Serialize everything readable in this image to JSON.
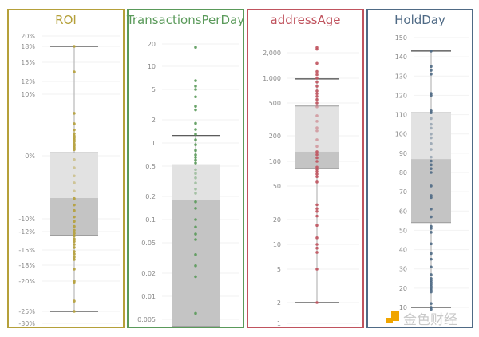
{
  "chart_data": [
    {
      "type": "box",
      "title": "ROI",
      "color": "#b5a03a",
      "scale": "nonlinear",
      "ticks": [
        "20%",
        "18%",
        "15%",
        "12%",
        "10%",
        "0%",
        "-10%",
        "-12%",
        "-15%",
        "-18%",
        "-20%",
        "-25%",
        "-30%"
      ],
      "tick_values": [
        20,
        18,
        15,
        12,
        10,
        0,
        -10,
        -12,
        -15,
        -18,
        -20,
        -25,
        -30
      ],
      "box": {
        "whisker_high": 18,
        "q3": 0.5,
        "median": -6.7,
        "q1": -12.6,
        "whisker_low": -25
      },
      "points": [
        18,
        13.5,
        6.9,
        5.2,
        4.2,
        3.6,
        3.2,
        2.9,
        2.6,
        2.3,
        1.9,
        1.6,
        1.3,
        1.0,
        -0.6,
        -1.9,
        -3.2,
        -4.3,
        -5.6,
        -6.8,
        -7.8,
        -8.7,
        -9.7,
        -10.4,
        -11.2,
        -11.8,
        -12.3,
        -12.7,
        -13.2,
        -13.6,
        -14.1,
        -14.6,
        -15.3,
        -15.8,
        -16.4,
        -16.9,
        -18.5,
        -20,
        -20.3,
        -23.3,
        -25
      ]
    },
    {
      "type": "box",
      "title": "TransactionsPerDay",
      "color": "#5a9a5a",
      "scale": "log",
      "ticks": [
        "20",
        "10",
        "5",
        "2",
        "1",
        "0.5",
        "0.2",
        "0.1",
        "0.05",
        "0.02",
        "0.01",
        "0.005"
      ],
      "tick_values": [
        20,
        10,
        5,
        2,
        1,
        0.5,
        0.2,
        0.1,
        0.05,
        0.02,
        0.01,
        0.005
      ],
      "box": {
        "whisker_high": 1.25,
        "q3": 0.52,
        "median": 0.18,
        "q1": 0.004,
        "whisker_low": 0.004
      },
      "points": [
        18,
        6.5,
        5.5,
        5,
        4,
        3,
        2.7,
        1.8,
        1.5,
        1.3,
        1.1,
        0.95,
        0.8,
        0.7,
        0.65,
        0.6,
        0.55,
        0.45,
        0.4,
        0.35,
        0.3,
        0.25,
        0.22,
        0.17,
        0.14,
        0.1,
        0.08,
        0.065,
        0.055,
        0.035,
        0.025,
        0.018,
        0.006
      ]
    },
    {
      "type": "box",
      "title": "addressAge",
      "color": "#c0535e",
      "scale": "log",
      "ticks": [
        "2,000",
        "1,000",
        "500",
        "200",
        "100",
        "50",
        "20",
        "10",
        "5",
        "2",
        "1"
      ],
      "tick_values": [
        2000,
        1000,
        500,
        200,
        100,
        50,
        20,
        10,
        5,
        2,
        1
      ],
      "box": {
        "whisker_high": 980,
        "q3": 460,
        "median": 130,
        "q1": 82,
        "whisker_low": 2
      },
      "points": [
        2300,
        2200,
        1500,
        1200,
        1100,
        1000,
        900,
        800,
        700,
        650,
        600,
        550,
        500,
        450,
        350,
        300,
        250,
        230,
        180,
        150,
        130,
        120,
        110,
        100,
        85,
        80,
        75,
        70,
        65,
        56,
        30,
        27,
        25,
        22,
        17,
        12,
        10,
        9,
        8,
        5,
        2
      ]
    },
    {
      "type": "box",
      "title": "HoldDay",
      "color": "#4f6a85",
      "scale": "linear",
      "ticks": [
        "150",
        "140",
        "130",
        "120",
        "110",
        "100",
        "90",
        "80",
        "70",
        "60",
        "50",
        "40",
        "30",
        "20",
        "10"
      ],
      "tick_values": [
        150,
        140,
        130,
        120,
        110,
        100,
        90,
        80,
        70,
        60,
        50,
        40,
        30,
        20,
        10
      ],
      "box": {
        "whisker_high": 143,
        "q3": 111,
        "median": 87,
        "q1": 54,
        "whisker_low": 10
      },
      "points": [
        143,
        135,
        133,
        131,
        121,
        120,
        112,
        111,
        108,
        105,
        103,
        100,
        98,
        95,
        92,
        88,
        86,
        84,
        82,
        80,
        73,
        68,
        67,
        61,
        57,
        52,
        51,
        49,
        43,
        38,
        35,
        31,
        27,
        25,
        24,
        23,
        22,
        21,
        20,
        19,
        18,
        12,
        10,
        9
      ]
    }
  ],
  "watermark": {
    "text": "金色财经",
    "logo_color": "#f0a500"
  }
}
